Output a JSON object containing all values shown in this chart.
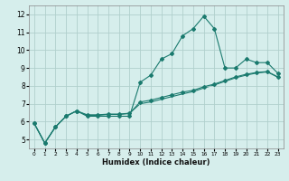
{
  "title": "",
  "xlabel": "Humidex (Indice chaleur)",
  "background_color": "#d6eeec",
  "line_color": "#1a7a6e",
  "grid_color": "#b0d0cc",
  "xlim": [
    -0.5,
    23.5
  ],
  "ylim": [
    4.5,
    12.5
  ],
  "xticks": [
    0,
    1,
    2,
    3,
    4,
    5,
    6,
    7,
    8,
    9,
    10,
    11,
    12,
    13,
    14,
    15,
    16,
    17,
    18,
    19,
    20,
    21,
    22,
    23
  ],
  "yticks": [
    5,
    6,
    7,
    8,
    9,
    10,
    11,
    12
  ],
  "line1_x": [
    0,
    1,
    2,
    3,
    4,
    5,
    6,
    7,
    8,
    9,
    10,
    11,
    12,
    13,
    14,
    15,
    16,
    17,
    18,
    19,
    20,
    21,
    22,
    23
  ],
  "line1_y": [
    5.9,
    4.8,
    5.7,
    6.3,
    6.6,
    6.3,
    6.3,
    6.3,
    6.3,
    6.3,
    8.2,
    8.6,
    9.5,
    9.8,
    10.8,
    11.2,
    11.9,
    11.2,
    9.0,
    9.0,
    9.5,
    9.3,
    9.3,
    8.7
  ],
  "line2_x": [
    0,
    1,
    2,
    3,
    4,
    5,
    6,
    7,
    8,
    9,
    10,
    11,
    12,
    13,
    14,
    15,
    16,
    17,
    18,
    19,
    20,
    21,
    22,
    23
  ],
  "line2_y": [
    5.9,
    4.8,
    5.7,
    6.3,
    6.6,
    6.35,
    6.35,
    6.4,
    6.4,
    6.45,
    7.1,
    7.2,
    7.35,
    7.5,
    7.65,
    7.75,
    7.95,
    8.1,
    8.3,
    8.5,
    8.65,
    8.75,
    8.8,
    8.5
  ],
  "line3_x": [
    0,
    1,
    2,
    3,
    4,
    5,
    6,
    7,
    8,
    9,
    10,
    11,
    12,
    13,
    14,
    15,
    16,
    17,
    18,
    19,
    20,
    21,
    22,
    23
  ],
  "line3_y": [
    5.9,
    4.8,
    5.7,
    6.3,
    6.6,
    6.38,
    6.38,
    6.42,
    6.42,
    6.47,
    7.0,
    7.1,
    7.25,
    7.4,
    7.55,
    7.68,
    7.88,
    8.05,
    8.25,
    8.45,
    8.6,
    8.72,
    8.78,
    8.48
  ],
  "markersize": 2.0,
  "linewidth": 0.8,
  "tick_fontsize_x": 4.2,
  "tick_fontsize_y": 5.5,
  "xlabel_fontsize": 6.0
}
